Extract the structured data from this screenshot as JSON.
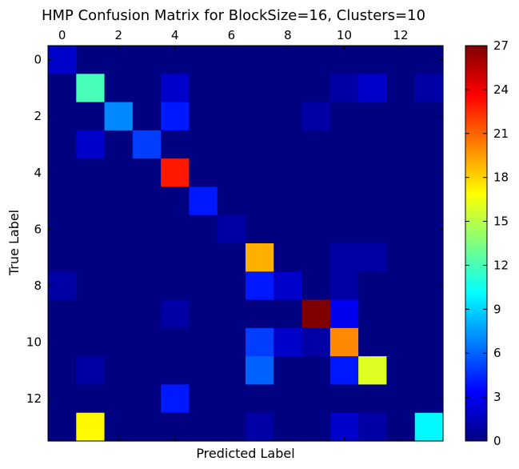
{
  "chart_data": {
    "type": "heatmap",
    "title": "HMP Confusion Matrix for BlockSize=16, Clusters=10",
    "xlabel": "Predicted Label",
    "ylabel": "True Label",
    "x_tick_labels": [
      "0",
      "2",
      "4",
      "6",
      "8",
      "10",
      "12"
    ],
    "x_tick_values": [
      0,
      2,
      4,
      6,
      8,
      10,
      12
    ],
    "y_tick_labels": [
      "0",
      "2",
      "4",
      "6",
      "8",
      "10",
      "12"
    ],
    "y_tick_values": [
      0,
      2,
      4,
      6,
      8,
      10,
      12
    ],
    "colorbar": {
      "range": [
        0,
        27
      ],
      "tick_values": [
        0,
        3,
        6,
        9,
        12,
        15,
        18,
        21,
        24,
        27
      ],
      "tick_labels": [
        "0",
        "3",
        "6",
        "9",
        "12",
        "15",
        "18",
        "21",
        "24",
        "27"
      ],
      "colormap": "jet"
    },
    "matrix": [
      [
        2,
        0,
        0,
        0,
        0,
        0,
        0,
        0,
        0,
        0,
        0,
        0,
        0,
        0
      ],
      [
        0,
        12,
        0,
        0,
        2,
        0,
        0,
        0,
        0,
        0,
        1,
        2,
        0,
        1
      ],
      [
        0,
        0,
        7,
        0,
        4,
        0,
        0,
        0,
        0,
        1,
        0,
        0,
        0,
        0
      ],
      [
        0,
        2,
        0,
        5,
        0,
        0,
        0,
        0,
        0,
        0,
        0,
        0,
        0,
        0
      ],
      [
        0,
        0,
        0,
        0,
        23,
        0,
        0,
        0,
        0,
        0,
        0,
        0,
        0,
        0
      ],
      [
        0,
        0,
        0,
        0,
        0,
        4,
        0,
        0,
        0,
        0,
        0,
        0,
        0,
        0
      ],
      [
        0,
        0,
        0,
        0,
        0,
        0,
        1,
        0,
        0,
        0,
        0,
        0,
        0,
        0
      ],
      [
        0,
        0,
        0,
        0,
        0,
        0,
        0,
        19,
        0,
        0,
        1,
        1,
        0,
        0
      ],
      [
        1,
        0,
        0,
        0,
        0,
        0,
        0,
        4,
        2,
        0,
        1,
        0,
        0,
        0
      ],
      [
        0,
        0,
        0,
        0,
        1,
        0,
        0,
        0,
        0,
        27,
        3,
        0,
        0,
        0
      ],
      [
        0,
        0,
        0,
        0,
        0,
        0,
        0,
        5,
        2,
        1,
        20,
        0,
        0,
        0
      ],
      [
        0,
        1,
        0,
        0,
        0,
        0,
        0,
        6,
        0,
        0,
        4,
        16,
        0,
        0
      ],
      [
        0,
        0,
        0,
        0,
        4,
        0,
        0,
        0,
        0,
        0,
        0,
        0,
        0,
        0
      ],
      [
        0,
        17,
        0,
        0,
        0,
        0,
        0,
        1,
        0,
        0,
        2,
        1,
        0,
        10
      ]
    ]
  }
}
